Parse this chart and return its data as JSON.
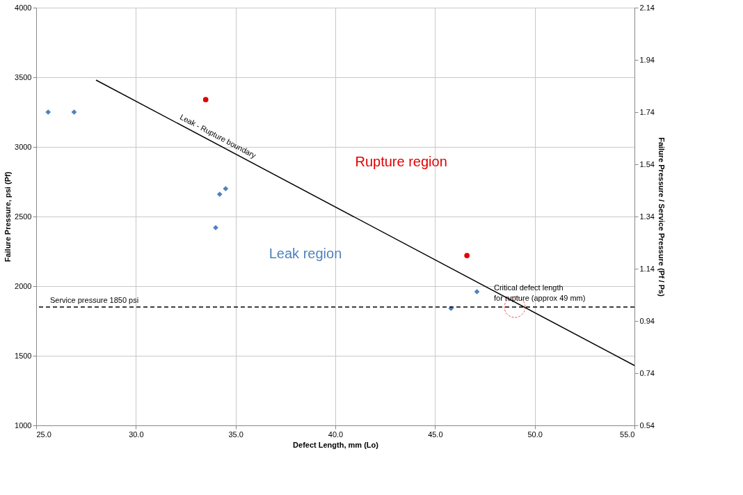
{
  "chart_data": {
    "type": "scatter",
    "xlabel": "Defect Length, mm (Lo)",
    "ylabel": "Failure Pressure, psi (Pf)",
    "y2label": "Failure Pressure / Service Pressure (Pf / Ps)",
    "xlim": [
      25,
      55
    ],
    "xticks": [
      {
        "value": 25,
        "label": "25.0"
      },
      {
        "value": 30,
        "label": "30.0"
      },
      {
        "value": 35,
        "label": "35.0"
      },
      {
        "value": 40,
        "label": "40.0"
      },
      {
        "value": 45,
        "label": "45.0"
      },
      {
        "value": 50,
        "label": "50.0"
      },
      {
        "value": 55,
        "label": "55.0"
      }
    ],
    "ylim": [
      1000,
      4000
    ],
    "yticks": [
      1000,
      1500,
      2000,
      2500,
      3000,
      3500,
      4000
    ],
    "y2lim": [
      0.54,
      2.14
    ],
    "y2ticks": [
      0.54,
      0.74,
      0.94,
      1.14,
      1.34,
      1.54,
      1.74,
      1.94,
      2.14
    ],
    "grid": true,
    "series": [
      {
        "marker": "diamond",
        "color": "#4f81bd",
        "x": [
          25.6,
          26.9,
          34.2,
          34.5,
          34.0,
          47.1,
          45.8
        ],
        "values": [
          3250,
          3250,
          2660,
          2700,
          2420,
          1960,
          1840
        ]
      },
      {
        "marker": "circle",
        "color": "#e00000",
        "x": [
          33.5,
          46.6
        ],
        "values": [
          3340,
          2220
        ]
      },
      {
        "type": "line",
        "name": "Leak - Rupture boundary",
        "color": "#000000",
        "line_style": "solid",
        "marker": "none",
        "x": [
          28.0,
          55.0
        ],
        "values": [
          3480,
          1430
        ]
      }
    ],
    "ref_lines": [
      {
        "axis": "y",
        "value": 1850,
        "label": "Service pressure 1850 psi",
        "color": "#000000",
        "line_style": "dashed"
      }
    ],
    "annotations": [
      "Rupture region",
      "Leak region",
      {
        "text": "Critical defect length\nfor rupture (approx 49 mm)",
        "x": 49,
        "y": 1850
      }
    ]
  }
}
